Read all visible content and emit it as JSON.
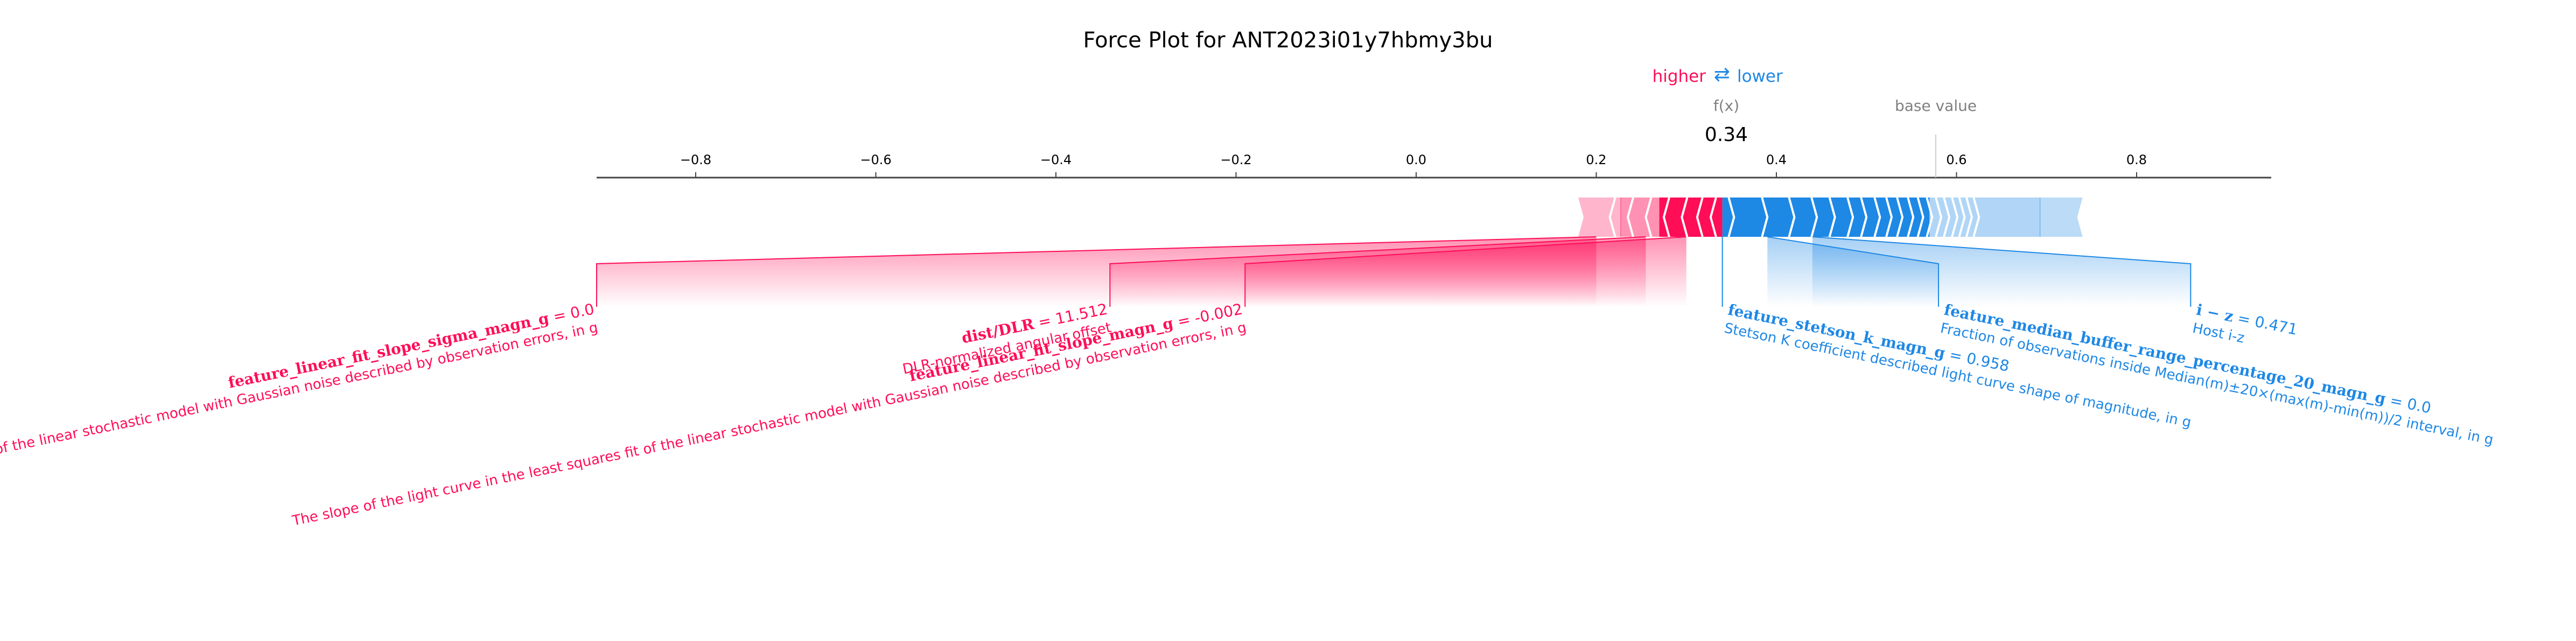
{
  "chart_data": {
    "type": "force",
    "title": "Force Plot for ANT2023i01y7hbmy3bu",
    "legend": {
      "higher": "higher",
      "lower": "lower",
      "arrow": "⇄"
    },
    "output_label": "f(x)",
    "output_value": 0.34,
    "output_value_label": "0.34",
    "base_value_label": "base value",
    "base_value": 0.577,
    "xlim": [
      -1.0,
      0.86
    ],
    "ticks": [
      -0.8,
      -0.6,
      -0.4,
      -0.2,
      0.0,
      0.2,
      0.4,
      0.6,
      0.8
    ],
    "tick_labels": [
      "−0.8",
      "−0.6",
      "−0.4",
      "−0.2",
      "0.0",
      "0.2",
      "0.4",
      "0.6",
      "0.8"
    ],
    "higher_color": "#ff0d57",
    "lower_color": "#1e88e5",
    "axis_color": "#444444",
    "text_gray": "#808080",
    "higher_stack_left": 0.18,
    "lower_stack_right": 0.74,
    "features": [
      {
        "direction": "higher",
        "name": "feature_linear_fit_slope_sigma_magn_g",
        "value": "0.0",
        "description": "The err on the slope of the light curve in the least squares fit of the linear stochastic model with Gaussian noise described by observation errors, in g",
        "label_x": -0.91
      },
      {
        "direction": "higher",
        "name": "dist/DLR",
        "value": "11.512",
        "description": "DLR-normalized angular offset",
        "label_x": -0.34
      },
      {
        "direction": "higher",
        "name": "feature_linear_fit_slope_magn_g",
        "value": "-0.002",
        "description": "The slope of the light curve in the least squares fit of the linear stochastic model with Gaussian noise described by observation errors, in g",
        "label_x": -0.19
      },
      {
        "direction": "lower",
        "name": "feature_stetson_k_magn_g",
        "value": "0.958",
        "description": "Stetson K coefficient described light curve shape of magnitude, in g",
        "label_x": 0.34
      },
      {
        "direction": "lower",
        "name": "feature_median_buffer_range_percentage_20_magn_g",
        "value": "0.0",
        "description": "Fraction of observations inside Median(m)±20×(max(m)-min(m))/2 interval, in g",
        "label_x": 0.58
      },
      {
        "direction": "lower",
        "name": "i − z",
        "value": "0.471",
        "description": "Host i-z",
        "label_x": 0.86
      }
    ]
  }
}
